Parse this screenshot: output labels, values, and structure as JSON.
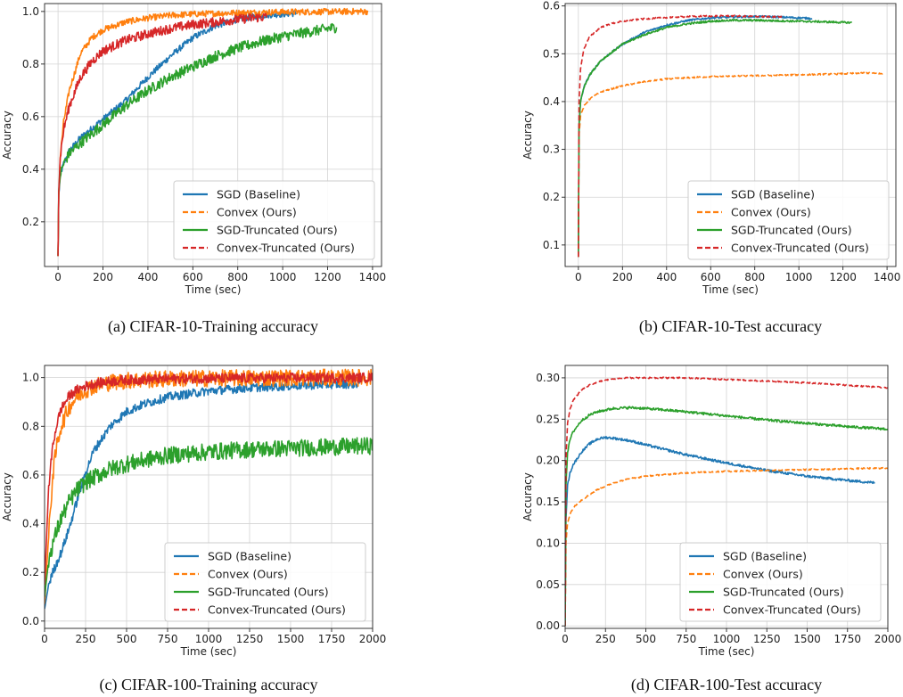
{
  "colors": {
    "sgd": "#1f77b4",
    "convex": "#ff7f0e",
    "sgd_trunc": "#2ca02c",
    "convex_trunc": "#d62728"
  },
  "chart_data": [
    {
      "type": "line",
      "caption": "(a) CIFAR-10-Training accuracy",
      "xlabel": "Time (sec)",
      "ylabel": "Accuracy",
      "xlim": [
        -60,
        1440
      ],
      "ylim": [
        0.03,
        1.03
      ],
      "xticks": [
        0,
        200,
        400,
        600,
        800,
        1000,
        1200,
        1400
      ],
      "yticks": [
        0.2,
        0.4,
        0.6,
        0.8,
        1.0
      ],
      "ytick_decimals": 1,
      "grid": true,
      "legend_loc": "lower-right",
      "series": [
        {
          "name": "SGD (Baseline)",
          "key": "sgd",
          "style": "solid",
          "noise": 0.012,
          "x": [
            0,
            3,
            10,
            25,
            50,
            100,
            200,
            300,
            400,
            500,
            600,
            700,
            800,
            900,
            1000,
            1060
          ],
          "y": [
            0.07,
            0.3,
            0.38,
            0.42,
            0.47,
            0.52,
            0.59,
            0.66,
            0.75,
            0.83,
            0.9,
            0.945,
            0.97,
            0.985,
            0.99,
            0.993
          ]
        },
        {
          "name": "Convex (Ours)",
          "key": "convex",
          "style": "dashed",
          "noise": 0.012,
          "x": [
            0,
            3,
            10,
            25,
            50,
            100,
            150,
            200,
            300,
            400,
            500,
            600,
            800,
            1000,
            1200,
            1380
          ],
          "y": [
            0.07,
            0.3,
            0.45,
            0.58,
            0.7,
            0.84,
            0.9,
            0.93,
            0.96,
            0.975,
            0.985,
            0.99,
            0.995,
            0.998,
            0.999,
            1.0
          ]
        },
        {
          "name": "SGD-Truncated (Ours)",
          "key": "sgd_trunc",
          "style": "solid",
          "noise": 0.02,
          "x": [
            0,
            3,
            10,
            25,
            50,
            100,
            200,
            300,
            400,
            500,
            600,
            700,
            800,
            900,
            1000,
            1100,
            1240
          ],
          "y": [
            0.07,
            0.3,
            0.38,
            0.42,
            0.46,
            0.5,
            0.57,
            0.64,
            0.7,
            0.75,
            0.79,
            0.83,
            0.86,
            0.885,
            0.905,
            0.92,
            0.94
          ]
        },
        {
          "name": "Convex-Truncated (Ours)",
          "key": "convex_trunc",
          "style": "dashed",
          "noise": 0.018,
          "x": [
            0,
            3,
            10,
            25,
            50,
            100,
            150,
            200,
            300,
            400,
            500,
            600,
            700,
            800,
            930
          ],
          "y": [
            0.07,
            0.32,
            0.45,
            0.55,
            0.64,
            0.75,
            0.81,
            0.85,
            0.89,
            0.915,
            0.935,
            0.95,
            0.96,
            0.97,
            0.98
          ]
        }
      ]
    },
    {
      "type": "line",
      "caption": "(b) CIFAR-10-Test accuracy",
      "xlabel": "Time (sec)",
      "ylabel": "Accuracy",
      "xlim": [
        -60,
        1440
      ],
      "ylim": [
        0.055,
        0.605
      ],
      "xticks": [
        0,
        200,
        400,
        600,
        800,
        1000,
        1200,
        1400
      ],
      "yticks": [
        0.1,
        0.2,
        0.3,
        0.4,
        0.5,
        0.6
      ],
      "ytick_decimals": 1,
      "grid": true,
      "legend_loc": "lower-right",
      "series": [
        {
          "name": "SGD (Baseline)",
          "key": "sgd",
          "style": "solid",
          "noise": 0.002,
          "x": [
            0,
            3,
            10,
            25,
            50,
            100,
            200,
            300,
            400,
            500,
            600,
            700,
            800,
            900,
            1000,
            1060
          ],
          "y": [
            0.075,
            0.35,
            0.4,
            0.43,
            0.455,
            0.485,
            0.52,
            0.545,
            0.56,
            0.57,
            0.575,
            0.577,
            0.578,
            0.577,
            0.575,
            0.574
          ]
        },
        {
          "name": "Convex (Ours)",
          "key": "convex",
          "style": "dashed",
          "noise": 0.0015,
          "x": [
            0,
            3,
            10,
            25,
            50,
            100,
            200,
            300,
            400,
            500,
            600,
            800,
            1000,
            1200,
            1300,
            1380
          ],
          "y": [
            0.075,
            0.33,
            0.37,
            0.39,
            0.405,
            0.42,
            0.433,
            0.442,
            0.447,
            0.45,
            0.452,
            0.454,
            0.456,
            0.458,
            0.46,
            0.458
          ]
        },
        {
          "name": "SGD-Truncated (Ours)",
          "key": "sgd_trunc",
          "style": "solid",
          "noise": 0.002,
          "x": [
            0,
            3,
            10,
            25,
            50,
            100,
            200,
            300,
            400,
            500,
            600,
            700,
            800,
            900,
            1000,
            1100,
            1240
          ],
          "y": [
            0.075,
            0.35,
            0.4,
            0.43,
            0.455,
            0.485,
            0.52,
            0.54,
            0.555,
            0.563,
            0.568,
            0.57,
            0.57,
            0.569,
            0.568,
            0.567,
            0.565
          ]
        },
        {
          "name": "Convex-Truncated (Ours)",
          "key": "convex_trunc",
          "style": "dashed",
          "noise": 0.0015,
          "x": [
            0,
            3,
            10,
            25,
            50,
            100,
            150,
            200,
            300,
            400,
            500,
            600,
            700,
            800,
            930
          ],
          "y": [
            0.075,
            0.4,
            0.47,
            0.51,
            0.535,
            0.555,
            0.563,
            0.568,
            0.573,
            0.576,
            0.578,
            0.579,
            0.579,
            0.578,
            0.577
          ]
        }
      ]
    },
    {
      "type": "line",
      "caption": "(c) CIFAR-100-Training accuracy",
      "xlabel": "Time (sec)",
      "ylabel": "Accuracy",
      "xlim": [
        0,
        2000
      ],
      "ylim": [
        -0.03,
        1.05
      ],
      "xticks": [
        0,
        250,
        500,
        750,
        1000,
        1250,
        1500,
        1750,
        2000
      ],
      "yticks": [
        0.0,
        0.2,
        0.4,
        0.6,
        0.8,
        1.0
      ],
      "ytick_decimals": 1,
      "grid": true,
      "legend_loc": "lower-right",
      "series": [
        {
          "name": "SGD (Baseline)",
          "key": "sgd",
          "style": "solid",
          "noise": 0.018,
          "x": [
            0,
            25,
            50,
            100,
            150,
            200,
            250,
            300,
            400,
            500,
            600,
            750,
            1000,
            1250,
            1500,
            1750,
            1920
          ],
          "y": [
            0.05,
            0.15,
            0.2,
            0.28,
            0.38,
            0.5,
            0.61,
            0.7,
            0.8,
            0.86,
            0.89,
            0.92,
            0.945,
            0.958,
            0.966,
            0.972,
            0.975
          ]
        },
        {
          "name": "Convex (Ours)",
          "key": "convex",
          "style": "dashed",
          "noise": 0.035,
          "x": [
            0,
            25,
            50,
            75,
            100,
            150,
            200,
            250,
            300,
            400,
            500,
            750,
            1000,
            1500,
            2000
          ],
          "y": [
            0.07,
            0.35,
            0.6,
            0.72,
            0.8,
            0.88,
            0.925,
            0.95,
            0.965,
            0.98,
            0.988,
            0.995,
            0.997,
            0.999,
            1.0
          ]
        },
        {
          "name": "SGD-Truncated (Ours)",
          "key": "sgd_trunc",
          "style": "solid",
          "noise": 0.035,
          "x": [
            0,
            25,
            50,
            100,
            150,
            200,
            250,
            300,
            400,
            500,
            600,
            750,
            1000,
            1250,
            1500,
            1750,
            2000
          ],
          "y": [
            0.1,
            0.25,
            0.32,
            0.42,
            0.49,
            0.54,
            0.57,
            0.59,
            0.625,
            0.645,
            0.66,
            0.68,
            0.695,
            0.705,
            0.71,
            0.715,
            0.72
          ]
        },
        {
          "name": "Convex-Truncated (Ours)",
          "key": "convex_trunc",
          "style": "dashed",
          "noise": 0.02,
          "x": [
            0,
            25,
            50,
            75,
            100,
            150,
            200,
            250,
            300,
            400,
            500,
            750,
            1000,
            1500,
            2000
          ],
          "y": [
            0.15,
            0.55,
            0.72,
            0.81,
            0.87,
            0.925,
            0.95,
            0.965,
            0.975,
            0.985,
            0.99,
            0.995,
            0.997,
            0.999,
            1.0
          ]
        }
      ]
    },
    {
      "type": "line",
      "caption": "(d) CIFAR-100-Test accuracy",
      "xlabel": "Time (sec)",
      "ylabel": "Accuracy",
      "xlim": [
        0,
        2000
      ],
      "ylim": [
        -0.003,
        0.315
      ],
      "xticks": [
        0,
        250,
        500,
        750,
        1000,
        1250,
        1500,
        1750,
        2000
      ],
      "yticks": [
        0.0,
        0.05,
        0.1,
        0.15,
        0.2,
        0.25,
        0.3
      ],
      "ytick_decimals": 2,
      "grid": true,
      "legend_loc": "lower-right",
      "series": [
        {
          "name": "SGD (Baseline)",
          "key": "sgd",
          "style": "solid",
          "noise": 0.0015,
          "x": [
            0,
            5,
            15,
            30,
            50,
            100,
            150,
            200,
            250,
            300,
            400,
            500,
            750,
            1000,
            1250,
            1500,
            1750,
            1920
          ],
          "y": [
            0.0,
            0.13,
            0.17,
            0.185,
            0.195,
            0.21,
            0.22,
            0.226,
            0.228,
            0.227,
            0.224,
            0.219,
            0.207,
            0.197,
            0.188,
            0.181,
            0.176,
            0.173
          ]
        },
        {
          "name": "Convex (Ours)",
          "key": "convex",
          "style": "dashed",
          "noise": 0.0008,
          "x": [
            0,
            5,
            15,
            30,
            50,
            100,
            200,
            300,
            400,
            500,
            750,
            1000,
            1250,
            1500,
            1750,
            2000
          ],
          "y": [
            0.0,
            0.1,
            0.125,
            0.135,
            0.143,
            0.152,
            0.165,
            0.173,
            0.178,
            0.181,
            0.185,
            0.187,
            0.188,
            0.189,
            0.19,
            0.191
          ]
        },
        {
          "name": "SGD-Truncated (Ours)",
          "key": "sgd_trunc",
          "style": "solid",
          "noise": 0.0015,
          "x": [
            0,
            5,
            15,
            30,
            50,
            100,
            150,
            200,
            300,
            400,
            500,
            750,
            1000,
            1250,
            1500,
            1750,
            2000
          ],
          "y": [
            0.0,
            0.17,
            0.21,
            0.225,
            0.235,
            0.248,
            0.255,
            0.259,
            0.263,
            0.264,
            0.263,
            0.259,
            0.254,
            0.249,
            0.245,
            0.241,
            0.238
          ]
        },
        {
          "name": "Convex-Truncated (Ours)",
          "key": "convex_trunc",
          "style": "dashed",
          "noise": 0.0008,
          "x": [
            0,
            5,
            15,
            30,
            50,
            100,
            150,
            200,
            250,
            300,
            400,
            500,
            750,
            1000,
            1250,
            1500,
            1750,
            2000
          ],
          "y": [
            0.0,
            0.2,
            0.245,
            0.262,
            0.273,
            0.285,
            0.291,
            0.295,
            0.297,
            0.299,
            0.3,
            0.3,
            0.3,
            0.298,
            0.296,
            0.294,
            0.291,
            0.288
          ]
        }
      ]
    }
  ]
}
